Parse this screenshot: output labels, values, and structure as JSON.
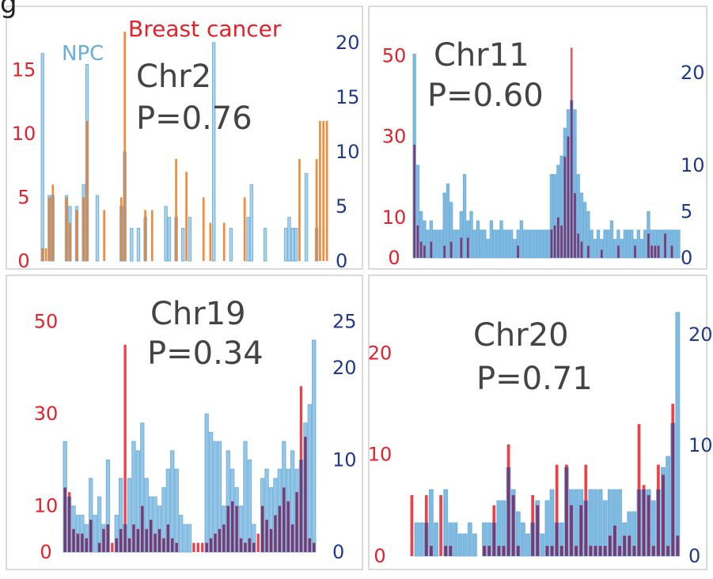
{
  "figure_label": "g",
  "colors": {
    "npc": "#6aaedb",
    "breast_bars_panel1": "#f47b1f",
    "breast_bars": "#e8202a",
    "left_axis": "#e8202a",
    "right_axis": "#1f3a8a",
    "panel_text": "#444444",
    "overlap": "#6a3a7a"
  },
  "chart_data": [
    {
      "type": "bar",
      "panel": "Chr2",
      "title": "Chr2",
      "subtitle": "P=0.76",
      "legend": [
        "NPC",
        "Breast cancer"
      ],
      "legend_placement": "top-left",
      "left_axis": {
        "ticks": [
          "0",
          "5",
          "10",
          "15"
        ],
        "ylim": [
          0,
          18
        ]
      },
      "right_axis": {
        "ticks": [
          "0",
          "5",
          "10",
          "15",
          "20"
        ],
        "ylim": [
          0,
          21
        ]
      },
      "series": [
        {
          "name": "NPC",
          "axis": "right",
          "values": [
            19,
            0,
            6,
            6,
            0,
            0,
            0,
            6,
            5,
            0,
            5,
            0,
            7,
            18,
            0,
            0,
            6,
            0,
            0,
            0,
            0,
            0,
            0,
            5,
            10,
            0,
            3,
            0,
            3,
            0,
            4,
            0,
            0,
            0,
            0,
            0,
            5,
            4,
            0,
            4,
            0,
            3,
            0,
            4,
            0,
            0,
            0,
            0,
            0,
            0,
            20,
            0,
            0,
            0,
            0,
            3,
            0,
            0,
            0,
            0,
            4,
            7,
            0,
            0,
            0,
            3,
            0,
            0,
            0,
            0,
            0,
            3,
            4,
            3,
            3,
            0,
            0,
            8,
            0,
            0,
            3,
            0,
            0,
            0,
            0
          ]
        },
        {
          "name": "Breast cancer",
          "axis": "left",
          "values": [
            1,
            1,
            5,
            6,
            0,
            0,
            0,
            5,
            3,
            0,
            4,
            0,
            5,
            11,
            0,
            0,
            0,
            0,
            4,
            0,
            0,
            0,
            0,
            5,
            18,
            0,
            0,
            0,
            0,
            0,
            4,
            0,
            4,
            0,
            0,
            0,
            0,
            0,
            0,
            8,
            0,
            0,
            7,
            0,
            0,
            0,
            0,
            5,
            0,
            3,
            0,
            0,
            0,
            3,
            0,
            0,
            0,
            0,
            0,
            5,
            0,
            0,
            0,
            0,
            0,
            0,
            0,
            0,
            0,
            0,
            0,
            0,
            0,
            0,
            0,
            8,
            0,
            0,
            0,
            0,
            8,
            11,
            11,
            11,
            0
          ]
        }
      ]
    },
    {
      "type": "bar",
      "panel": "Chr11",
      "title": "Chr11",
      "subtitle": "P=0.60",
      "left_axis": {
        "ticks": [
          "0",
          "10",
          "30",
          "50"
        ],
        "ylim": [
          0,
          55
        ]
      },
      "right_axis": {
        "ticks": [
          "0",
          "5",
          "10",
          "20"
        ],
        "ylim": [
          0,
          24
        ]
      },
      "series": [
        {
          "name": "NPC",
          "axis": "right",
          "values": [
            22,
            10,
            5,
            4,
            3,
            4,
            3,
            3,
            3,
            7,
            8,
            6,
            3,
            3,
            5,
            9,
            4,
            5,
            3,
            4,
            3,
            3,
            2,
            4,
            3,
            3,
            4,
            3,
            3,
            3,
            2,
            3,
            4,
            3,
            3,
            3,
            3,
            3,
            3,
            3,
            3,
            9,
            9,
            10,
            11,
            14,
            16,
            17,
            16,
            9,
            7,
            6,
            5,
            3,
            2,
            3,
            2,
            3,
            3,
            4,
            2,
            3,
            2,
            3,
            3,
            3,
            2,
            3,
            2,
            3,
            5,
            3,
            3,
            3,
            3,
            3,
            3,
            3,
            3,
            3
          ]
        },
        {
          "name": "Breast cancer",
          "axis": "left",
          "values": [
            28,
            8,
            4,
            3,
            0,
            4,
            0,
            0,
            0,
            3,
            0,
            4,
            0,
            0,
            5,
            0,
            5,
            0,
            0,
            0,
            0,
            0,
            0,
            0,
            0,
            0,
            0,
            0,
            0,
            0,
            0,
            3,
            0,
            0,
            0,
            0,
            0,
            0,
            0,
            0,
            0,
            7,
            8,
            10,
            8,
            25,
            30,
            52,
            16,
            6,
            4,
            0,
            3,
            0,
            0,
            0,
            2,
            0,
            0,
            0,
            0,
            3,
            0,
            0,
            0,
            0,
            3,
            0,
            0,
            0,
            6,
            3,
            3,
            3,
            0,
            6,
            0,
            3,
            0,
            0
          ]
        }
      ]
    },
    {
      "type": "bar",
      "panel": "Chr19",
      "title": "Chr19",
      "subtitle": "P=0.34",
      "left_axis": {
        "ticks": [
          "0",
          "10",
          "30",
          "50"
        ],
        "ylim": [
          0,
          52
        ]
      },
      "right_axis": {
        "ticks": [
          "0",
          "10",
          "20",
          "25"
        ],
        "ylim": [
          0,
          26
        ]
      },
      "series": [
        {
          "name": "NPC",
          "axis": "right",
          "values": [
            12,
            6,
            5,
            4,
            4,
            3,
            8,
            4,
            6,
            3,
            10,
            0,
            4,
            8,
            3,
            8,
            12,
            11,
            14,
            8,
            6,
            6,
            5,
            7,
            9,
            11,
            9,
            4,
            3,
            3,
            0,
            0,
            0,
            15,
            13,
            12,
            12,
            5,
            11,
            9,
            7,
            5,
            12,
            10,
            3,
            0,
            8,
            9,
            7,
            8,
            9,
            12,
            9,
            11,
            9,
            10,
            14,
            16,
            23
          ]
        },
        {
          "name": "Breast cancer",
          "axis": "left",
          "values": [
            14,
            13,
            5,
            4,
            4,
            3,
            7,
            0,
            2,
            5,
            6,
            2,
            3,
            5,
            45,
            3,
            6,
            5,
            10,
            5,
            7,
            4,
            5,
            3,
            6,
            3,
            2,
            0,
            0,
            0,
            2,
            2,
            2,
            2,
            3,
            4,
            5,
            6,
            10,
            11,
            10,
            3,
            2,
            3,
            2,
            4,
            10,
            7,
            5,
            8,
            10,
            14,
            11,
            6,
            13,
            36,
            25,
            3,
            2
          ]
        }
      ]
    },
    {
      "type": "bar",
      "panel": "Chr20",
      "title": "Chr20",
      "subtitle": "P=0.71",
      "left_axis": {
        "ticks": [
          "0",
          "10",
          "20"
        ],
        "ylim": [
          0,
          24
        ]
      },
      "right_axis": {
        "ticks": [
          "0",
          "10",
          "20"
        ],
        "ylim": [
          0,
          22
        ]
      },
      "series": [
        {
          "name": "NPC",
          "axis": "right",
          "values": [
            0,
            3,
            3,
            3,
            6,
            3,
            0,
            6,
            3,
            3,
            2,
            2,
            3,
            2,
            0,
            3,
            3,
            3,
            5,
            5,
            8,
            6,
            4,
            3,
            2,
            3,
            5,
            2,
            5,
            6,
            3,
            3,
            8,
            6,
            6,
            6,
            5,
            6,
            6,
            6,
            5,
            6,
            6,
            6,
            3,
            4,
            4,
            6,
            6,
            6,
            5,
            6,
            8,
            9,
            12,
            22
          ]
        },
        {
          "name": "Breast cancer",
          "axis": "left",
          "values": [
            6,
            0,
            0,
            6,
            1,
            0,
            6,
            1,
            1,
            0,
            0,
            0,
            0,
            0,
            0,
            1,
            1,
            5,
            1,
            1,
            11,
            6,
            1,
            0,
            0,
            6,
            5,
            0,
            1,
            1,
            9,
            1,
            9,
            5,
            1,
            5,
            9,
            1,
            1,
            1,
            1,
            2,
            3,
            1,
            2,
            2,
            1,
            13,
            7,
            6,
            1,
            9,
            8,
            1,
            15,
            2
          ]
        }
      ]
    }
  ]
}
